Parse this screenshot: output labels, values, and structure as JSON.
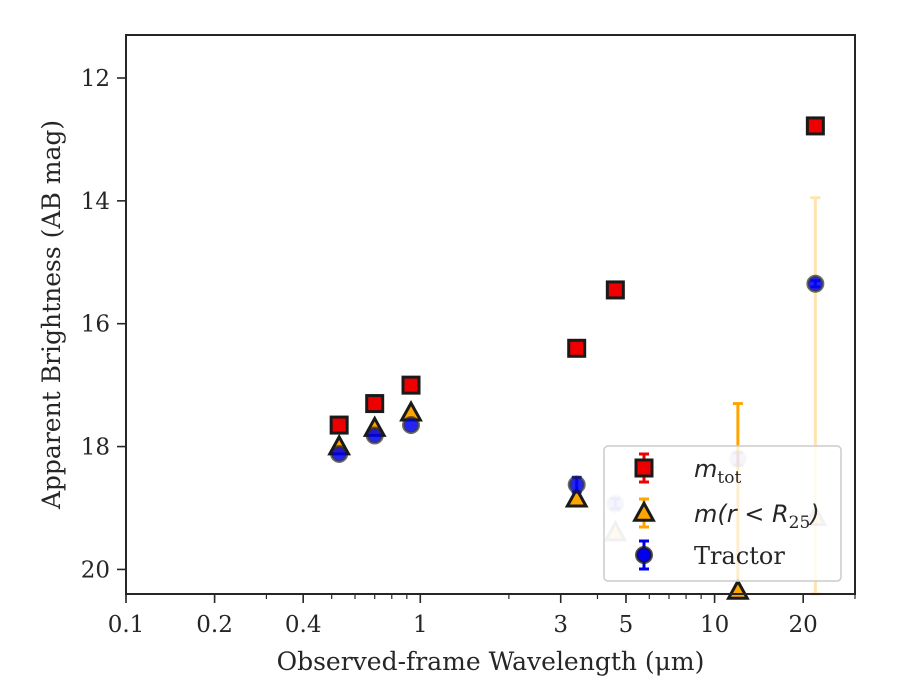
{
  "chart_data": {
    "type": "scatter",
    "xlabel": "Observed-frame Wavelength (μm)",
    "ylabel": "Apparent Brightness (AB mag)",
    "x_scale": "log",
    "xlim": [
      0.1,
      30
    ],
    "ylim": [
      20.4,
      11.3
    ],
    "y_inverted": true,
    "x_ticks": [
      {
        "value": 0.1,
        "label": "0.1"
      },
      {
        "value": 0.2,
        "label": "0.2"
      },
      {
        "value": 0.4,
        "label": "0.4"
      },
      {
        "value": 1,
        "label": "1"
      },
      {
        "value": 3,
        "label": "3"
      },
      {
        "value": 5,
        "label": "5"
      },
      {
        "value": 10,
        "label": "10"
      },
      {
        "value": 20,
        "label": "20"
      }
    ],
    "y_ticks": [
      {
        "value": 12,
        "label": "12"
      },
      {
        "value": 14,
        "label": "14"
      },
      {
        "value": 16,
        "label": "16"
      },
      {
        "value": 18,
        "label": "18"
      },
      {
        "value": 20,
        "label": "20"
      }
    ],
    "grid": false,
    "legend_position": "lower-right",
    "series": [
      {
        "name": "m_tot",
        "legend_main": "m",
        "legend_sub": "tot",
        "marker": "square",
        "face_color": "#ee0000",
        "edge_color": "#1a1a1a",
        "error_color": "#ee0000",
        "alpha": 1,
        "points": [
          {
            "x": 0.53,
            "y": 17.65,
            "yerr": 0.0
          },
          {
            "x": 0.7,
            "y": 17.3,
            "yerr": 0.0
          },
          {
            "x": 0.93,
            "y": 17.0,
            "yerr": 0.0
          },
          {
            "x": 3.4,
            "y": 16.4,
            "yerr": 0.0
          },
          {
            "x": 4.6,
            "y": 15.45,
            "yerr": 0.0
          },
          {
            "x": 22.0,
            "y": 12.78,
            "yerr": 0.0
          }
        ]
      },
      {
        "name": "m(r < R25)",
        "legend_main": "m(r < R",
        "legend_sub": "25",
        "legend_tail": ")",
        "marker": "triangle",
        "face_color": "#ffa500",
        "edge_color": "#1a1a1a",
        "error_color": "#ffa500",
        "alpha_per_point": true,
        "points": [
          {
            "x": 0.53,
            "y": 18.0,
            "yerr": 0.0,
            "alpha": 1
          },
          {
            "x": 0.7,
            "y": 17.7,
            "yerr": 0.0,
            "alpha": 1
          },
          {
            "x": 0.93,
            "y": 17.45,
            "yerr": 0.0,
            "alpha": 1
          },
          {
            "x": 3.4,
            "y": 18.85,
            "yerr": 0.0,
            "alpha": 1
          },
          {
            "x": 4.6,
            "y": 19.4,
            "yerr": 0.0,
            "alpha": 0.3
          },
          {
            "x": 12.0,
            "y": 20.35,
            "yerr": 3.05,
            "alpha": 1
          },
          {
            "x": 22.0,
            "y": 19.15,
            "yerr": 5.2,
            "alpha": 0.3
          }
        ]
      },
      {
        "name": "Tractor",
        "legend_main": "Tractor",
        "marker": "circle",
        "face_color": "#0000ee",
        "edge_color": "#1a1a1a",
        "error_color": "#0000ee",
        "points": [
          {
            "x": 0.53,
            "y": 18.12,
            "yerr": 0.0,
            "alpha": 0.85
          },
          {
            "x": 0.7,
            "y": 17.82,
            "yerr": 0.0,
            "alpha": 0.85
          },
          {
            "x": 0.93,
            "y": 17.65,
            "yerr": 0.0,
            "alpha": 0.85
          },
          {
            "x": 3.4,
            "y": 18.62,
            "yerr": 0.12,
            "alpha": 0.85
          },
          {
            "x": 4.6,
            "y": 18.93,
            "yerr": 0.08,
            "alpha": 0.2
          },
          {
            "x": 12.0,
            "y": 18.2,
            "yerr": 0.1,
            "alpha": 0.2
          },
          {
            "x": 22.0,
            "y": 15.35,
            "yerr": 0.05,
            "alpha": 0.85
          }
        ]
      }
    ]
  }
}
